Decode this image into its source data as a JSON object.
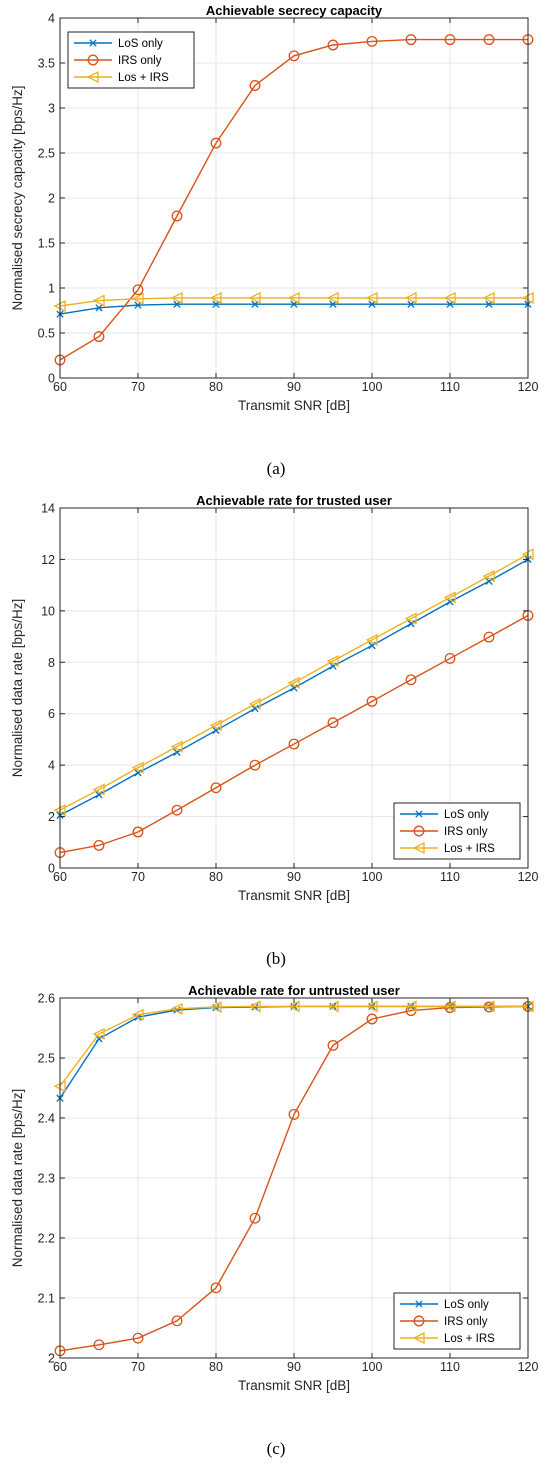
{
  "colors": {
    "los": "#0072BD",
    "irs": "#D95319",
    "los_irs": "#EDB120",
    "grid": "#e6e6e6",
    "axis": "#262626"
  },
  "legend": [
    "LoS only",
    "IRS only",
    "Los + IRS"
  ],
  "chart_data": [
    {
      "type": "line",
      "title": "Achievable secrecy capacity",
      "xlabel": "Transmit SNR [dB]",
      "ylabel": "Normalised secrecy capacity [bps/Hz]",
      "caption": "(a)",
      "legend_position": "top-left",
      "grid": true,
      "xlim": [
        60,
        120
      ],
      "ylim": [
        0,
        4
      ],
      "xticks": [
        60,
        70,
        80,
        90,
        100,
        110,
        120
      ],
      "yticks": [
        0,
        0.5,
        1,
        1.5,
        2,
        2.5,
        3,
        3.5,
        4
      ],
      "ytick_labels": [
        "0",
        "0.5",
        "1",
        "1.5",
        "2",
        "2.5",
        "3",
        "3.5",
        "4"
      ],
      "x": [
        60,
        65,
        70,
        75,
        80,
        85,
        90,
        95,
        100,
        105,
        110,
        115,
        120
      ],
      "series": [
        {
          "name": "LoS only",
          "marker": "x",
          "values": [
            0.71,
            0.78,
            0.81,
            0.82,
            0.82,
            0.82,
            0.82,
            0.82,
            0.82,
            0.82,
            0.82,
            0.82,
            0.82
          ]
        },
        {
          "name": "IRS only",
          "marker": "o",
          "values": [
            0.2,
            0.46,
            0.98,
            1.8,
            2.61,
            3.25,
            3.58,
            3.7,
            3.74,
            3.76,
            3.76,
            3.76,
            3.76
          ]
        },
        {
          "name": "Los + IRS",
          "marker": "triangle-left",
          "values": [
            0.8,
            0.86,
            0.88,
            0.89,
            0.89,
            0.89,
            0.89,
            0.89,
            0.89,
            0.89,
            0.89,
            0.89,
            0.89
          ]
        }
      ]
    },
    {
      "type": "line",
      "title": "Achievable rate for trusted user",
      "xlabel": "Transmit SNR [dB]",
      "ylabel": "Normalised data rate [bps/Hz]",
      "caption": "(b)",
      "legend_position": "bottom-right",
      "grid": true,
      "xlim": [
        60,
        120
      ],
      "ylim": [
        0,
        14
      ],
      "xticks": [
        60,
        70,
        80,
        90,
        100,
        110,
        120
      ],
      "yticks": [
        0,
        2,
        4,
        6,
        8,
        10,
        12,
        14
      ],
      "ytick_labels": [
        "0",
        "2",
        "4",
        "6",
        "8",
        "10",
        "12",
        "14"
      ],
      "x": [
        60,
        65,
        70,
        75,
        80,
        85,
        90,
        95,
        100,
        105,
        110,
        115,
        120
      ],
      "series": [
        {
          "name": "LoS only",
          "marker": "x",
          "values": [
            2.05,
            2.85,
            3.7,
            4.5,
            5.35,
            6.2,
            7.0,
            7.85,
            8.65,
            9.5,
            10.35,
            11.15,
            12.0
          ]
        },
        {
          "name": "IRS only",
          "marker": "o",
          "values": [
            0.6,
            0.88,
            1.4,
            2.25,
            3.12,
            4.0,
            4.82,
            5.65,
            6.48,
            7.32,
            8.15,
            8.98,
            9.82
          ]
        },
        {
          "name": "Los + IRS",
          "marker": "triangle-left",
          "values": [
            2.25,
            3.05,
            3.9,
            4.72,
            5.55,
            6.38,
            7.2,
            8.05,
            8.87,
            9.7,
            10.52,
            11.35,
            12.2
          ]
        }
      ]
    },
    {
      "type": "line",
      "title": "Achievable rate for untrusted user",
      "xlabel": "Transmit SNR [dB]",
      "ylabel": "Normalised data rate [bps/Hz]",
      "caption": "(c)",
      "legend_position": "bottom-right",
      "grid": true,
      "xlim": [
        60,
        120
      ],
      "ylim": [
        2,
        2.6
      ],
      "xticks": [
        60,
        70,
        80,
        90,
        100,
        110,
        120
      ],
      "yticks": [
        2,
        2.1,
        2.2,
        2.3,
        2.4,
        2.5,
        2.6
      ],
      "ytick_labels": [
        "2",
        "2.1",
        "2.2",
        "2.3",
        "2.4",
        "2.5",
        "2.6"
      ],
      "x": [
        60,
        65,
        70,
        75,
        80,
        85,
        90,
        95,
        100,
        105,
        110,
        115,
        120
      ],
      "series": [
        {
          "name": "LoS only",
          "marker": "x",
          "values": [
            2.433,
            2.532,
            2.568,
            2.58,
            2.584,
            2.585,
            2.586,
            2.586,
            2.586,
            2.586,
            2.586,
            2.586,
            2.586
          ]
        },
        {
          "name": "IRS only",
          "marker": "o",
          "values": [
            2.012,
            2.022,
            2.033,
            2.062,
            2.117,
            2.233,
            2.406,
            2.521,
            2.565,
            2.579,
            2.584,
            2.585,
            2.586
          ]
        },
        {
          "name": "Los + IRS",
          "marker": "triangle-left",
          "values": [
            2.453,
            2.54,
            2.572,
            2.582,
            2.585,
            2.586,
            2.586,
            2.586,
            2.586,
            2.586,
            2.586,
            2.586,
            2.586
          ]
        }
      ]
    }
  ]
}
